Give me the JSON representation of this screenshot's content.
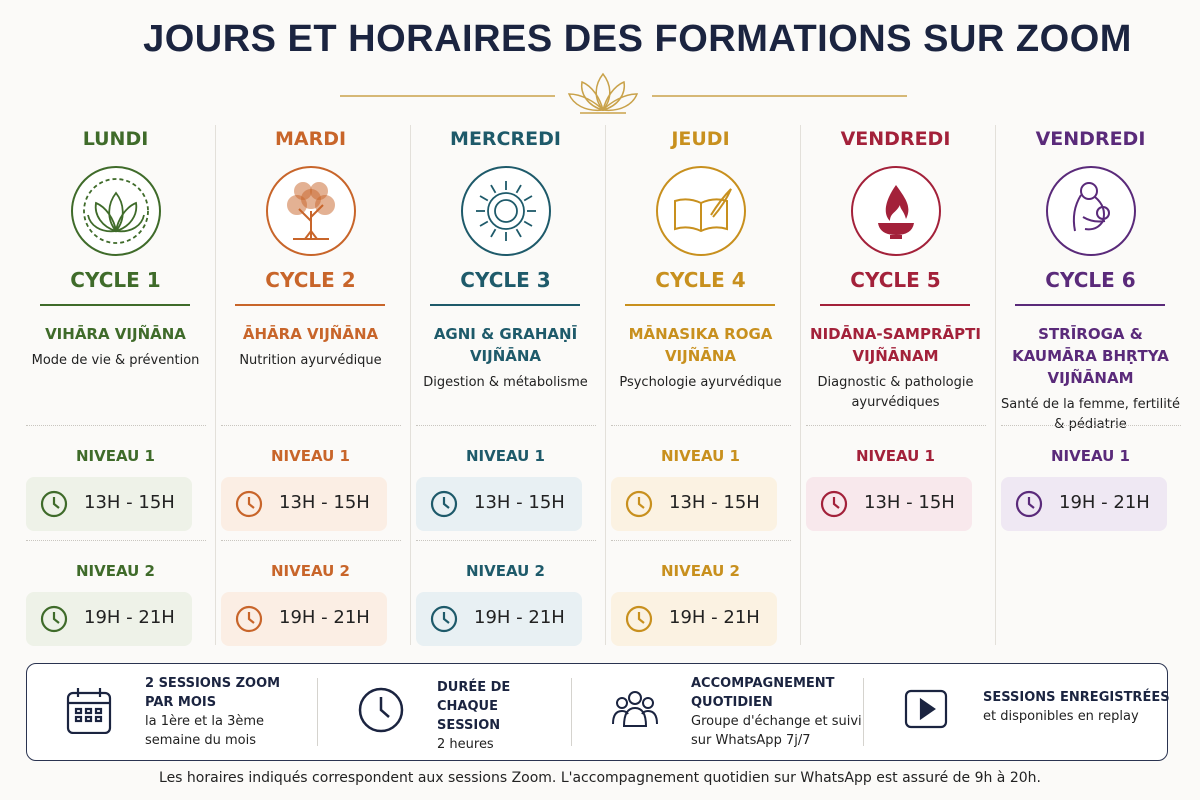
{
  "header": {
    "title": "JOURS ET HORAIRES DES FORMATIONS SUR ZOOM"
  },
  "days": [
    {
      "day": "LUNDI",
      "cycle": "CYCLE 1",
      "name": "VIHĀRA VIJÑĀNA",
      "subtitle": "Mode de vie & prévention",
      "levels": [
        {
          "level": "NIVEAU 1",
          "time": "13H - 15H"
        },
        {
          "level": "NIVEAU 2",
          "time": "19H - 21H"
        }
      ]
    },
    {
      "day": "MARDI",
      "cycle": "CYCLE 2",
      "name": "ĀHĀRA VIJÑĀNA",
      "subtitle": "Nutrition ayurvédique",
      "levels": [
        {
          "level": "NIVEAU 1",
          "time": "13H - 15H"
        },
        {
          "level": "NIVEAU 2",
          "time": "19H - 21H"
        }
      ]
    },
    {
      "day": "MERCREDI",
      "cycle": "CYCLE 3",
      "name": "AGNI & GRAHAṆĪ VIJÑĀNA",
      "subtitle": "Digestion & métabolisme",
      "levels": [
        {
          "level": "NIVEAU 1",
          "time": "13H - 15H"
        },
        {
          "level": "NIVEAU 2",
          "time": "19H - 21H"
        }
      ]
    },
    {
      "day": "JEUDI",
      "cycle": "CYCLE 4",
      "name": "MĀNASIKA ROGA VIJÑĀNA",
      "subtitle": "Psychologie ayurvédique",
      "levels": [
        {
          "level": "NIVEAU 1",
          "time": "13H - 15H"
        },
        {
          "level": "NIVEAU 2",
          "time": "19H - 21H"
        }
      ]
    },
    {
      "day": "VENDREDI",
      "cycle": "CYCLE 5",
      "name": "NIDĀNA-SAMPRĀPTI VIJÑĀNAM",
      "subtitle": "Diagnostic & pathologie ayurvédiques",
      "levels": [
        {
          "level": "NIVEAU 1",
          "time": "13H - 15H"
        }
      ]
    },
    {
      "day": "VENDREDI",
      "cycle": "CYCLE 6",
      "name": "STRĪROGA & KAUMĀRA BHṚTYA VIJÑĀNAM",
      "subtitle": "Santé de la femme, fertilité & pédiatrie",
      "levels": [
        {
          "level": "NIVEAU 1",
          "time": "19H - 21H"
        }
      ]
    }
  ],
  "features": [
    {
      "title": "2 SESSIONS ZOOM PAR MOIS",
      "text": "la 1ère et la 3ème semaine du mois"
    },
    {
      "title": "DURÉE DE CHAQUE SESSION",
      "text": "2 heures"
    },
    {
      "title": "ACCOMPAGNEMENT QUOTIDIEN",
      "text": "Groupe d'échange et suivi sur WhatsApp 7j/7"
    },
    {
      "title": "SESSIONS ENREGISTRÉES",
      "text": "et disponibles en replay"
    }
  ],
  "footer": {
    "note": "Les horaires indiqués correspondent aux sessions Zoom. L'accompagnement quotidien sur WhatsApp est assuré de 9h à 20h."
  }
}
